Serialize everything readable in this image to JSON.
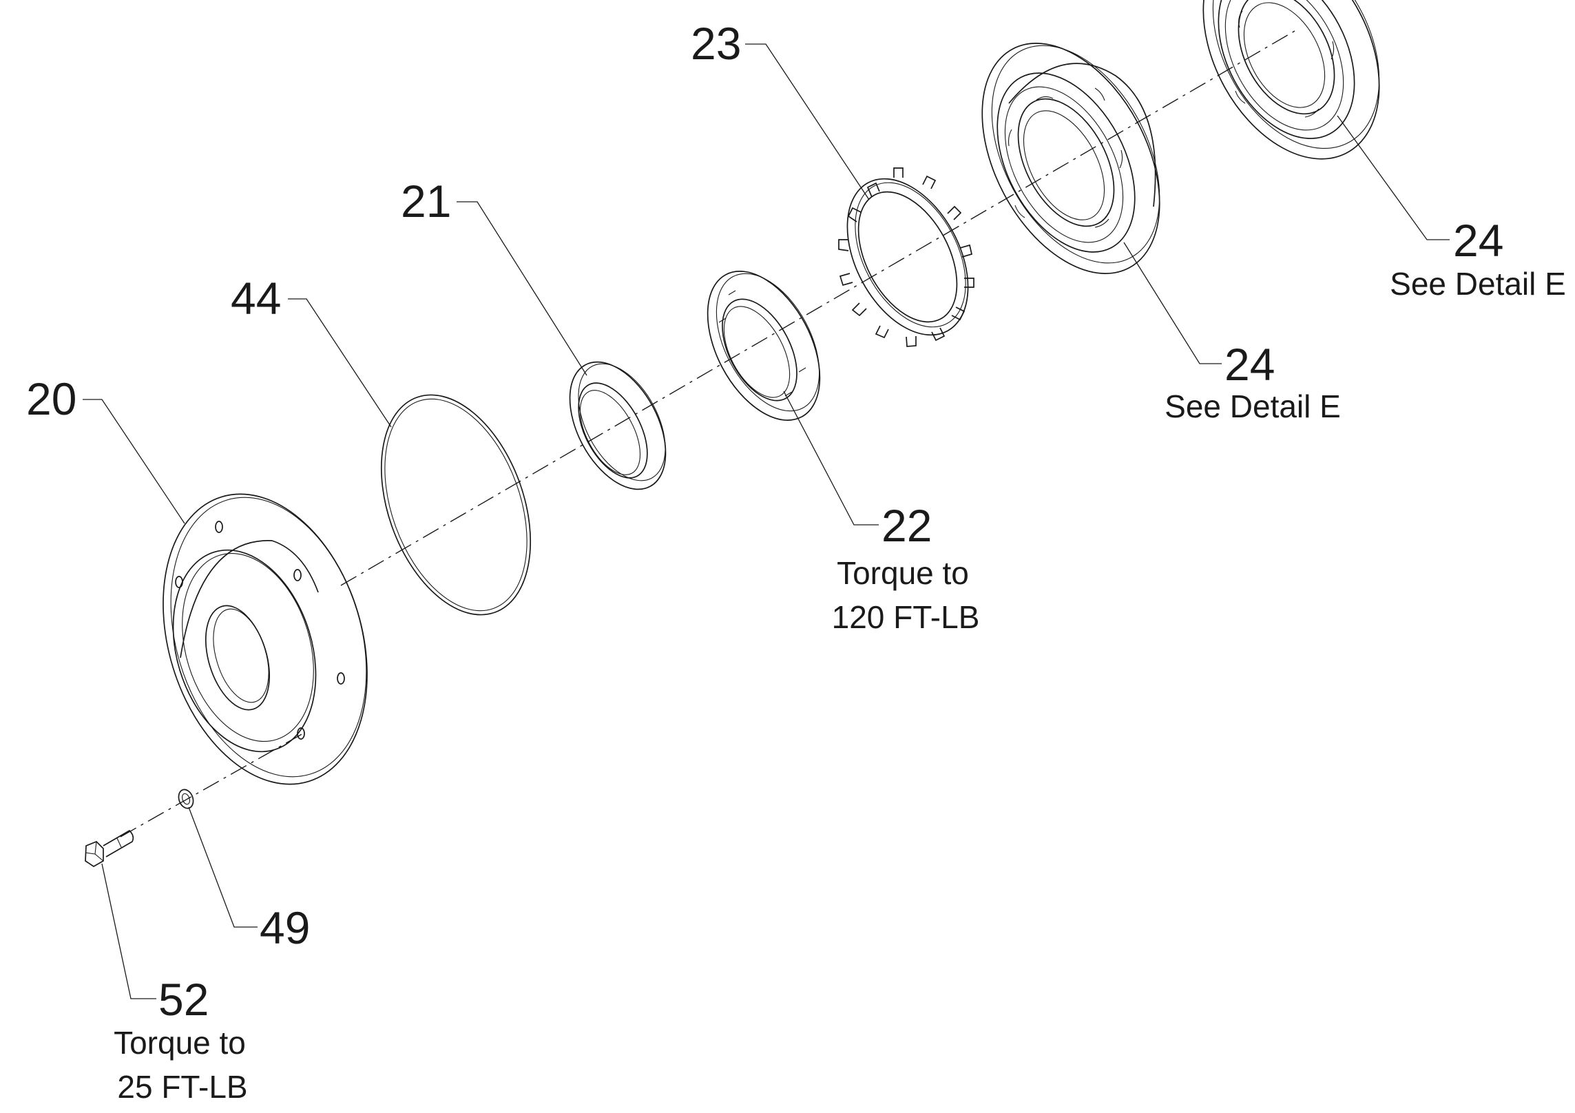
{
  "callouts": {
    "c20": {
      "number": "20"
    },
    "c21": {
      "number": "21"
    },
    "c22": {
      "number": "22",
      "note_line1": "Torque to",
      "note_line2": "120 FT-LB"
    },
    "c23": {
      "number": "23"
    },
    "c24a": {
      "number": "24",
      "note_line1": "See Detail E"
    },
    "c24b": {
      "number": "24",
      "note_line1": "See Detail E"
    },
    "c44": {
      "number": "44"
    },
    "c49": {
      "number": "49"
    },
    "c52": {
      "number": "52",
      "note_line1": "Torque to",
      "note_line2": "25 FT-LB"
    }
  }
}
